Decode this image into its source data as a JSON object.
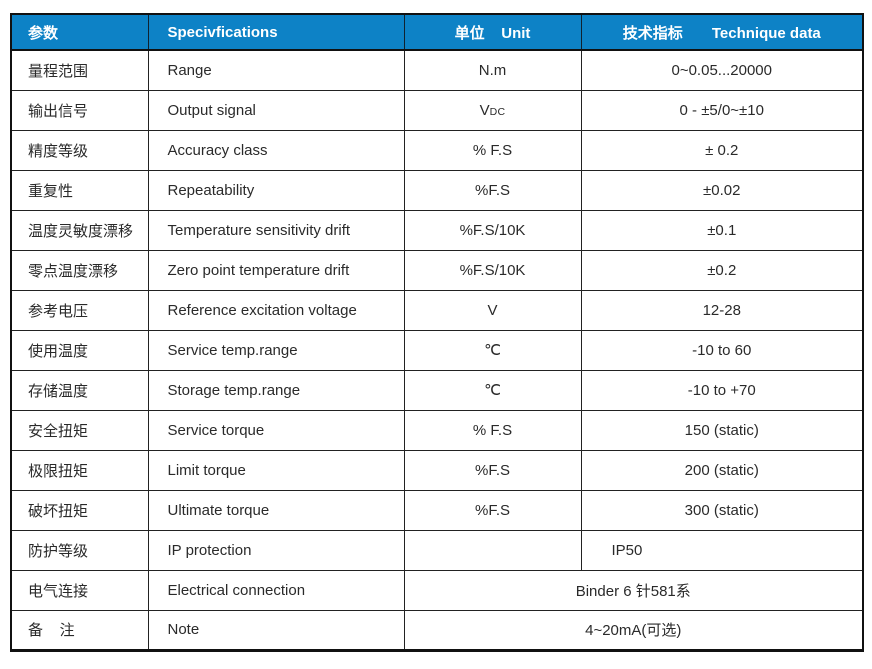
{
  "table": {
    "headers": {
      "param": "参数",
      "spec": "Specivfications",
      "unit": "单位    Unit",
      "tech": "技术指标       Technique data"
    },
    "rows": [
      {
        "zh": "量程范围",
        "en": "Range",
        "unit": "N.m",
        "value": "0~0.05...20000"
      },
      {
        "zh": "输出信号",
        "en": "Output signal",
        "unit_main": "V",
        "unit_sub": "DC",
        "value": "0 - ±5/0~±10"
      },
      {
        "zh": "精度等级",
        "en": "Accuracy class",
        "unit": "% F.S",
        "value": "± 0.2"
      },
      {
        "zh": "重复性",
        "en": "Repeatability",
        "unit": "%F.S",
        "value": "±0.02"
      },
      {
        "zh": "温度灵敏度漂移",
        "en": "Temperature sensitivity drift",
        "unit": "%F.S/10K",
        "value": "±0.1"
      },
      {
        "zh": "零点温度漂移",
        "en": "Zero point temperature drift",
        "unit": "%F.S/10K",
        "value": "±0.2"
      },
      {
        "zh": "参考电压",
        "en": "Reference excitation voltage",
        "unit": "V",
        "value": "12-28"
      },
      {
        "zh": "使用温度",
        "en": "Service temp.range",
        "unit": "℃",
        "value": "-10 to 60"
      },
      {
        "zh": "存储温度",
        "en": "Storage temp.range",
        "unit": "℃",
        "value": "-10 to +70"
      },
      {
        "zh": "安全扭矩",
        "en": "Service torque",
        "unit": "% F.S",
        "value": "150 (static)"
      },
      {
        "zh": "极限扭矩",
        "en": "Limit torque",
        "unit": "%F.S",
        "value": "200 (static)"
      },
      {
        "zh": "破坏扭矩",
        "en": "Ultimate torque",
        "unit": "%F.S",
        "value": "300 (static)"
      },
      {
        "zh": "防护等级",
        "en": "IP protection",
        "unit": "",
        "value": "IP50"
      },
      {
        "zh": "电气连接",
        "en": "Electrical connection",
        "value": "Binder 6 针581系"
      },
      {
        "zh": "备    注",
        "en": "Note",
        "value": "4~20mA(可选)"
      }
    ],
    "colors": {
      "header_bg": "#0d82c6",
      "header_text": "#ffffff",
      "body_text": "#2a2a2a",
      "grid_line": "#222222"
    }
  }
}
